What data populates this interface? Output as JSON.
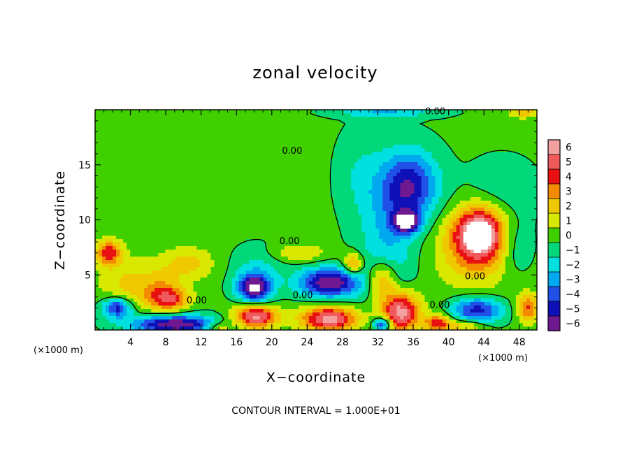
{
  "chart_data": {
    "type": "heatmap",
    "title": "zonal velocity",
    "xlabel": "X−coordinate",
    "ylabel": "Z−coordinate",
    "x_unit_left": "(×1000 m)",
    "x_unit_right": "(×1000 m)",
    "xlim": [
      0,
      50
    ],
    "ylim": [
      0,
      20
    ],
    "x_ticks": [
      4,
      8,
      12,
      16,
      20,
      24,
      28,
      32,
      36,
      40,
      44,
      48
    ],
    "y_ticks": [
      5,
      10,
      15
    ],
    "colorbar": {
      "levels": [
        6,
        5,
        4,
        3,
        2,
        1,
        0,
        -1,
        -2,
        -3,
        -4,
        -5,
        -6
      ],
      "labels": [
        "6",
        "5",
        "4",
        "3",
        "2",
        "1",
        "0",
        "−1",
        "−2",
        "−3",
        "−4",
        "−5",
        "−6"
      ],
      "colors": [
        "#f2a0a0",
        "#f05a5a",
        "#e81010",
        "#f48a00",
        "#f0c800",
        "#d8e800",
        "#40d000",
        "#00d87a",
        "#00e0e0",
        "#00a8f0",
        "#2050e8",
        "#1010b8",
        "#701890"
      ]
    },
    "contour_interval": "CONTOUR INTERVAL = 1.000E+01",
    "contour_labels": [
      {
        "text": "0.00",
        "x": 38.5,
        "y": 19.6
      },
      {
        "text": "0.00",
        "x": 22.3,
        "y": 16.0
      },
      {
        "text": "0.00",
        "x": 22.0,
        "y": 7.8
      },
      {
        "text": "0.00",
        "x": 11.5,
        "y": 2.4
      },
      {
        "text": "0.00",
        "x": 23.5,
        "y": 2.9
      },
      {
        "text": "0.00",
        "x": 39.0,
        "y": 2.0
      },
      {
        "text": "0.00",
        "x": 43.0,
        "y": 4.6
      }
    ],
    "features": [
      {
        "x": 35.5,
        "y": 13.0,
        "value": -5.2,
        "sx": 3.2,
        "sy": 3.2
      },
      {
        "x": 35.2,
        "y": 9.8,
        "value": -6.8,
        "sx": 1.4,
        "sy": 0.9
      },
      {
        "x": 33.0,
        "y": 7.0,
        "value": -2.2,
        "sx": 3.0,
        "sy": 5.5
      },
      {
        "x": 43.5,
        "y": 8.8,
        "value": 6.8,
        "sx": 2.8,
        "sy": 2.3
      },
      {
        "x": 43.0,
        "y": 7.0,
        "value": 2.5,
        "sx": 4.5,
        "sy": 3.5
      },
      {
        "x": 1.5,
        "y": 7.0,
        "value": 4.5,
        "sx": 1.4,
        "sy": 1.1
      },
      {
        "x": 3.8,
        "y": 4.0,
        "value": 2.0,
        "sx": 3.5,
        "sy": 2.5
      },
      {
        "x": 2.5,
        "y": 2.0,
        "value": -5.5,
        "sx": 1.7,
        "sy": 0.9
      },
      {
        "x": 7.5,
        "y": 3.8,
        "value": 1.8,
        "sx": 2.2,
        "sy": 1.6
      },
      {
        "x": 8.5,
        "y": 2.8,
        "value": 4.2,
        "sx": 2.2,
        "sy": 1.0
      },
      {
        "x": 9.0,
        "y": 0.5,
        "value": -6.5,
        "sx": 5.0,
        "sy": 0.8
      },
      {
        "x": 10.5,
        "y": 6.0,
        "value": 2.2,
        "sx": 3.0,
        "sy": 1.5
      },
      {
        "x": 14.0,
        "y": 0.2,
        "value": 3.0,
        "sx": 1.5,
        "sy": 0.6
      },
      {
        "x": 18.0,
        "y": 3.8,
        "value": -6.8,
        "sx": 1.8,
        "sy": 1.2
      },
      {
        "x": 18.2,
        "y": 1.2,
        "value": 6.5,
        "sx": 2.4,
        "sy": 1.0
      },
      {
        "x": 18.5,
        "y": 5.5,
        "value": -1.5,
        "sx": 3.0,
        "sy": 2.0
      },
      {
        "x": 23.0,
        "y": 7.0,
        "value": 2.0,
        "sx": 3.0,
        "sy": 0.8
      },
      {
        "x": 26.5,
        "y": 4.3,
        "value": -6.5,
        "sx": 3.3,
        "sy": 1.3
      },
      {
        "x": 26.5,
        "y": 1.0,
        "value": 6.5,
        "sx": 3.2,
        "sy": 1.1
      },
      {
        "x": 29.2,
        "y": 6.0,
        "value": 4.0,
        "sx": 1.0,
        "sy": 0.9
      },
      {
        "x": 32.5,
        "y": 4.5,
        "value": 4.0,
        "sx": 1.6,
        "sy": 1.8
      },
      {
        "x": 34.5,
        "y": 1.6,
        "value": 7.0,
        "sx": 2.2,
        "sy": 1.8
      },
      {
        "x": 32.5,
        "y": 0.5,
        "value": -5.5,
        "sx": 1.0,
        "sy": 0.6
      },
      {
        "x": 38.8,
        "y": 0.6,
        "value": 4.5,
        "sx": 1.5,
        "sy": 0.8
      },
      {
        "x": 43.2,
        "y": 1.8,
        "value": -5.0,
        "sx": 2.8,
        "sy": 1.2
      },
      {
        "x": 42.0,
        "y": 0.4,
        "value": 3.0,
        "sx": 2.2,
        "sy": 0.5
      },
      {
        "x": 49.0,
        "y": 2.0,
        "value": 4.0,
        "sx": 1.2,
        "sy": 1.3
      },
      {
        "x": 47.5,
        "y": 7.5,
        "value": -1.8,
        "sx": 2.0,
        "sy": 2.5
      },
      {
        "x": 46.0,
        "y": 12.5,
        "value": -1.0,
        "sx": 4.0,
        "sy": 3.0
      },
      {
        "x": 33.0,
        "y": 19.8,
        "value": -2.5,
        "sx": 5.5,
        "sy": 0.5
      },
      {
        "x": 48.5,
        "y": 19.8,
        "value": 3.0,
        "sx": 1.5,
        "sy": 0.5
      },
      {
        "x": 4.0,
        "y": 13.0,
        "value": 0.4,
        "sx": 6.0,
        "sy": 5.0
      },
      {
        "x": 12.5,
        "y": 11.5,
        "value": 0.35,
        "sx": 5.0,
        "sy": 2.5
      },
      {
        "x": 30.0,
        "y": 14.0,
        "value": -1.2,
        "sx": 2.5,
        "sy": 4.0
      }
    ]
  }
}
